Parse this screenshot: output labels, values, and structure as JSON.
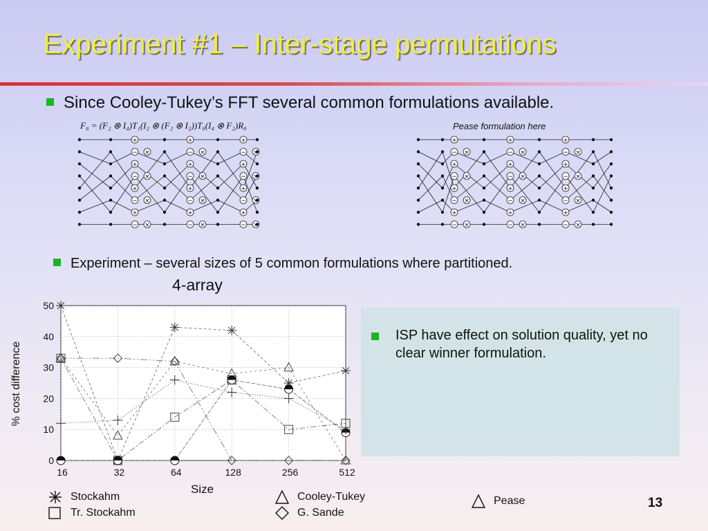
{
  "slide": {
    "title": "Experiment #1 – Inter-stage permutations",
    "bullet1": "Since Cooley-Tukey’s FFT several common formulations available.",
    "formula": "F₈ = (F₂ ⊗ I₄)T₁(I₂ ⊗ (F₂ ⊗ I₂))T₀(I₄ ⊗ F₂)R₈",
    "pease_note": "Pease formulation here",
    "bullet2": "Experiment – several sizes of 5 common formulations where partitioned.",
    "note": "ISP have effect on solution quality, yet no clear winner formulation.",
    "page_number": "13"
  },
  "colors": {
    "title": "#f3ee3a",
    "bullet": "#15b820",
    "rule": "#d93232",
    "note_box": "#d3e4e8"
  },
  "chart_data": {
    "type": "line",
    "title": "4-array",
    "xlabel": "Size",
    "ylabel": "% cost difference",
    "categories": [
      "16",
      "32",
      "64",
      "128",
      "256",
      "512"
    ],
    "ylim": [
      0,
      50
    ],
    "yticks": [
      0,
      10,
      20,
      30,
      40,
      50
    ],
    "grid": true,
    "legend_position": "bottom",
    "series": [
      {
        "name": "Stockahm",
        "marker": "asterisk",
        "values": [
          50,
          0,
          43,
          42,
          25,
          29
        ]
      },
      {
        "name": "Tr. Stockahm",
        "marker": "square",
        "values": [
          33,
          0,
          14,
          26,
          10,
          12
        ]
      },
      {
        "name": "Cooley-Tukey",
        "marker": "triangle",
        "values": [
          33,
          8,
          32,
          28,
          30,
          0
        ]
      },
      {
        "name": "G. Sande",
        "marker": "diamond",
        "values": [
          33,
          33,
          32,
          0,
          0,
          0
        ]
      },
      {
        "name": "Pease",
        "marker": "half-circle",
        "values": [
          0,
          0,
          0,
          26,
          23,
          9
        ]
      },
      {
        "name": "",
        "marker": "plus",
        "values": [
          12,
          13,
          26,
          22,
          20,
          10
        ]
      }
    ]
  }
}
